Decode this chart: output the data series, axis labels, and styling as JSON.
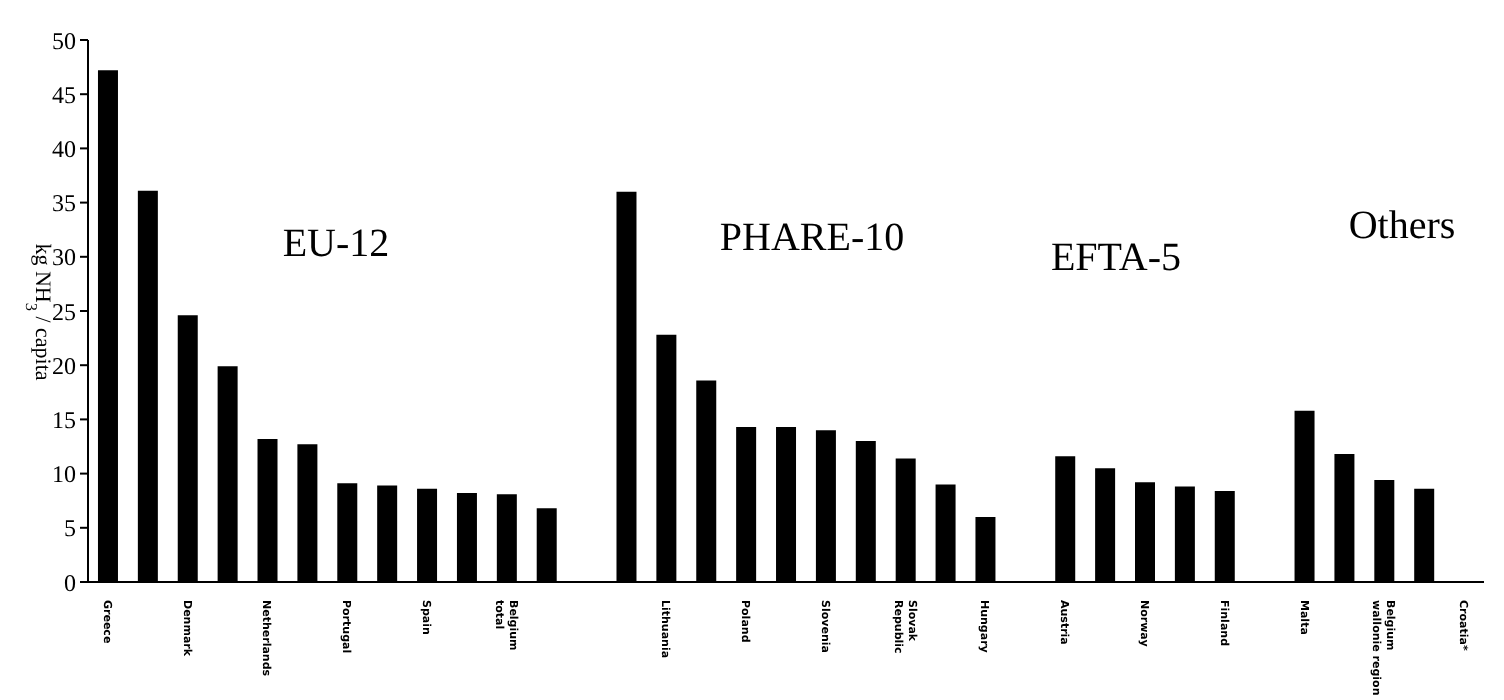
{
  "chart_data": {
    "type": "bar",
    "ylabel": "kg NH$_{3}$ / capita",
    "categories": [
      "Greece",
      null,
      "Denmark",
      null,
      "Netherlands",
      null,
      "Portugal",
      null,
      "Spain",
      null,
      "Belgium\ntotal",
      null,
      null,
      null,
      "Lithuania",
      null,
      "Poland",
      null,
      "Slovenia",
      null,
      "Slovak\nRepublic",
      null,
      "Hungary",
      null,
      "Austria",
      null,
      "Norway",
      null,
      "Finland",
      null,
      "Malta",
      null,
      "Belgium\nwallonie region",
      null,
      "Croatia*"
    ],
    "values": [
      47.2,
      36.1,
      24.6,
      19.9,
      13.2,
      12.7,
      9.1,
      8.9,
      8.6,
      8.2,
      8.1,
      6.8,
      null,
      36.0,
      22.8,
      18.6,
      14.3,
      14.3,
      14.0,
      13.0,
      11.4,
      9.0,
      6.0,
      null,
      11.6,
      10.5,
      9.2,
      8.8,
      8.4,
      null,
      15.8,
      11.8,
      9.4,
      8.6,
      null
    ],
    "color": "#000000",
    "ylim": [
      0,
      50
    ],
    "yticks": [
      0,
      5,
      10,
      15,
      20,
      25,
      30,
      35,
      40,
      45,
      50
    ],
    "grid": false,
    "legend": false,
    "annotations": [
      "EU-12",
      "PHARE-10",
      "EFTA-5",
      "Others"
    ]
  }
}
